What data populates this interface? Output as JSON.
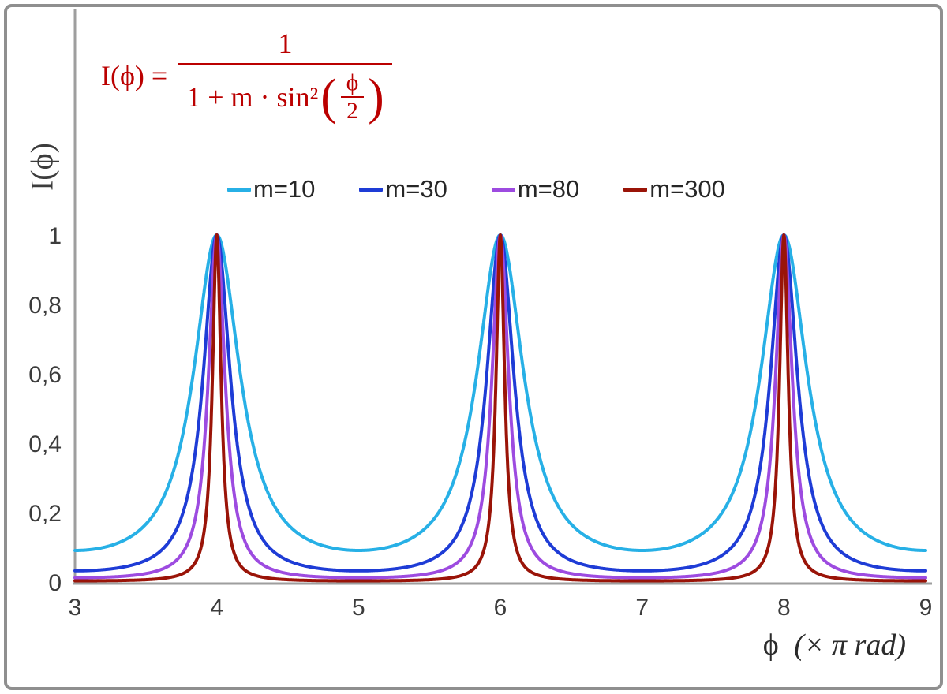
{
  "chart_data": {
    "type": "line",
    "title": "",
    "formula": {
      "expression": "I(ϕ) = 1 / (1 + m·sin²(ϕ/2))",
      "lhs": "I(ϕ) =",
      "numerator": "1",
      "den_prefix": "1 + m · sin²",
      "open_paren": "(",
      "close_paren": ")",
      "den_frac_top": "ϕ",
      "den_frac_bottom": "2",
      "color": "#bb0000"
    },
    "ylabel": "I(ϕ)",
    "xlabel": {
      "symbol": "ϕ",
      "unit": "(× π rad)"
    },
    "xlim": [
      3,
      9
    ],
    "ylim": [
      0,
      1
    ],
    "grid": false,
    "legend_position": "top-center",
    "axis_color": "#9e9e9e",
    "tick_color": "#3c3c3c",
    "x_units": "multiples of π rad",
    "function": "I(x) = 1 / (1 + m·sin²(π·x/2)) with x in units of π rad; peaks of height 1 at x = 4, 6, 8",
    "x_ticks": [
      {
        "v": 3,
        "label": "3"
      },
      {
        "v": 4,
        "label": "4"
      },
      {
        "v": 5,
        "label": "5"
      },
      {
        "v": 6,
        "label": "6"
      },
      {
        "v": 7,
        "label": "7"
      },
      {
        "v": 8,
        "label": "8"
      },
      {
        "v": 9,
        "label": "9"
      }
    ],
    "y_ticks": [
      {
        "v": 0,
        "label": "0"
      },
      {
        "v": 0.2,
        "label": "0,2"
      },
      {
        "v": 0.4,
        "label": "0,4"
      },
      {
        "v": 0.6,
        "label": "0,6"
      },
      {
        "v": 0.8,
        "label": "0,8"
      },
      {
        "v": 1,
        "label": "1"
      }
    ],
    "series": [
      {
        "name": "m=10",
        "m": 10,
        "color": "#27b0e6"
      },
      {
        "name": "m=30",
        "m": 30,
        "color": "#1e3cd6"
      },
      {
        "name": "m=80",
        "m": 80,
        "color": "#9d4be0"
      },
      {
        "name": "m=300",
        "m": 300,
        "color": "#9a1408"
      }
    ]
  },
  "frame": {
    "border_color": "#8f8f8f"
  }
}
